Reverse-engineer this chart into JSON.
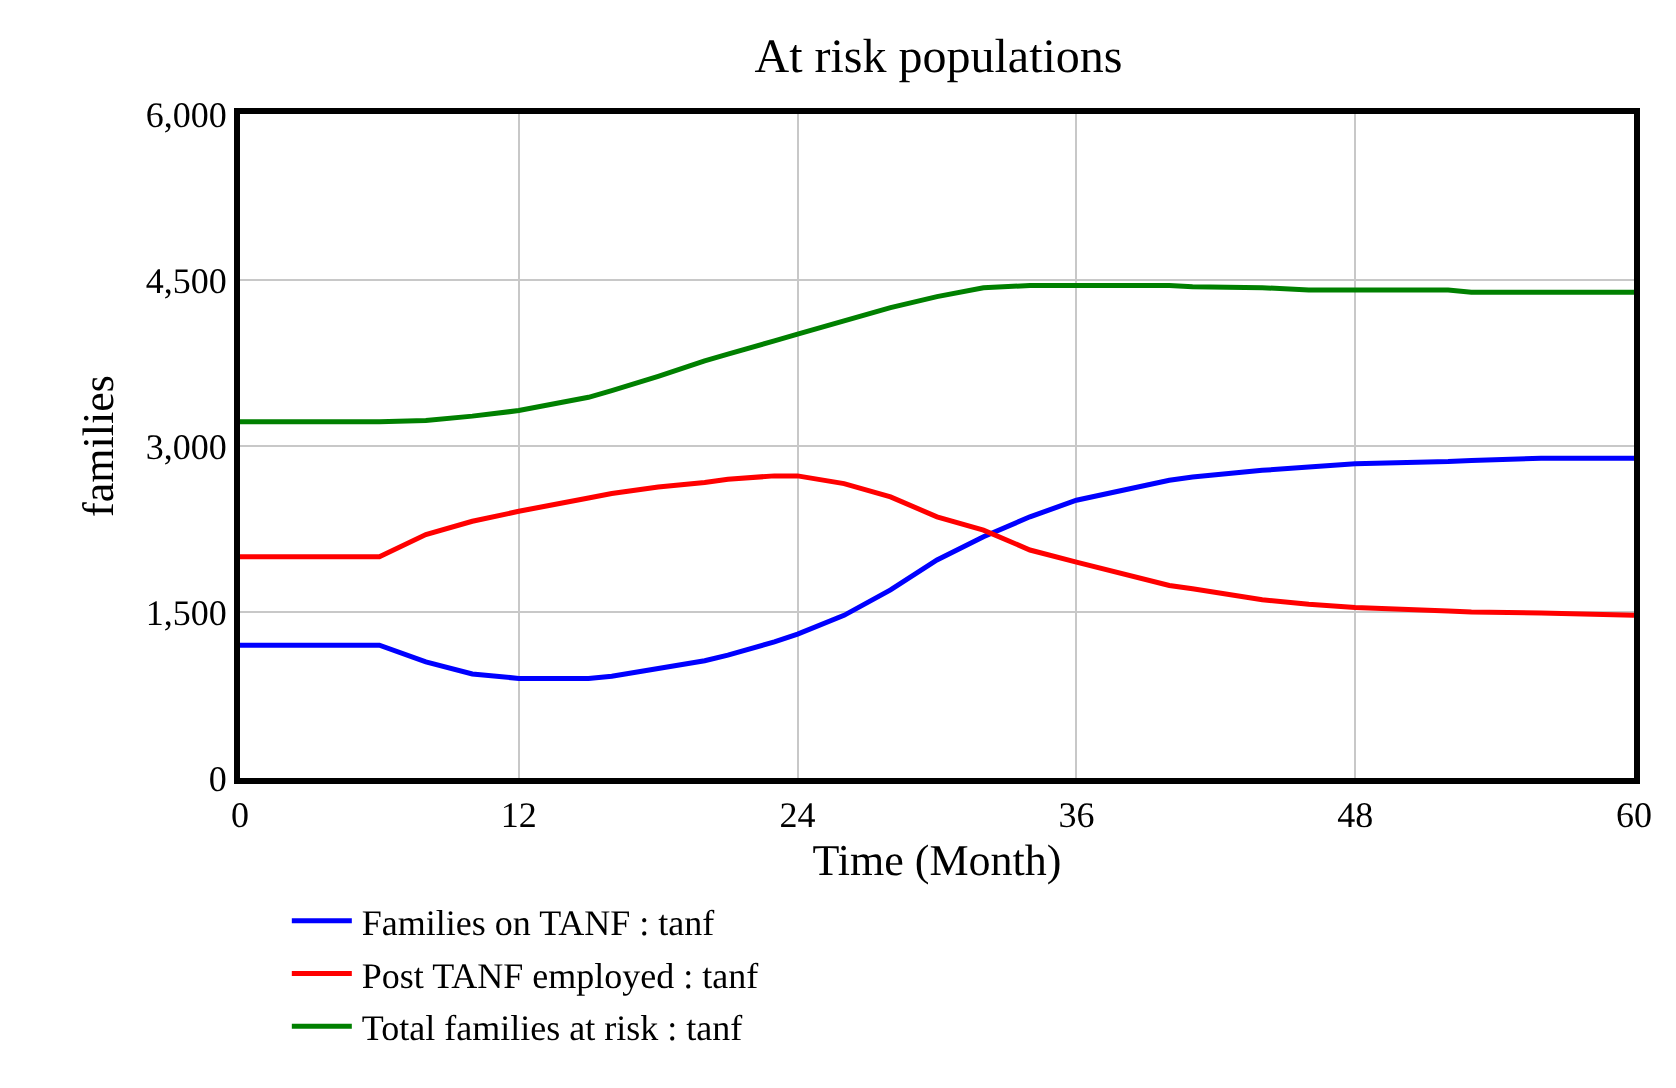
{
  "chart_data": {
    "type": "line",
    "title": "At risk populations",
    "xlabel": "Time (Month)",
    "ylabel": "families",
    "x": [
      0,
      6,
      8,
      10,
      12,
      15,
      16,
      18,
      20,
      21,
      23,
      24,
      26,
      28,
      30,
      32,
      34,
      36,
      40,
      41,
      44,
      46,
      48,
      52,
      53,
      56,
      60
    ],
    "series": [
      {
        "name": "Families on TANF : tanf",
        "color": "#0000ff",
        "values": [
          1200,
          1200,
          1050,
          940,
          900,
          900,
          920,
          990,
          1060,
          1110,
          1230,
          1300,
          1470,
          1700,
          1970,
          2180,
          2360,
          2510,
          2690,
          2720,
          2780,
          2810,
          2840,
          2860,
          2870,
          2890,
          2890
        ]
      },
      {
        "name": "Post TANF employed : tanf",
        "color": "#ff0000",
        "values": [
          2000,
          2000,
          2200,
          2320,
          2410,
          2530,
          2570,
          2630,
          2670,
          2700,
          2730,
          2730,
          2660,
          2540,
          2360,
          2240,
          2060,
          1950,
          1740,
          1710,
          1610,
          1570,
          1540,
          1510,
          1500,
          1490,
          1470
        ]
      },
      {
        "name": "Total families at risk : tanf",
        "color": "#008000",
        "values": [
          3220,
          3220,
          3230,
          3270,
          3320,
          3440,
          3500,
          3630,
          3770,
          3830,
          3950,
          4010,
          4130,
          4250,
          4350,
          4430,
          4450,
          4450,
          4450,
          4440,
          4430,
          4410,
          4410,
          4410,
          4390,
          4390,
          4390
        ]
      }
    ],
    "xlim": [
      0,
      60
    ],
    "xticks": [
      0,
      12,
      24,
      36,
      48,
      60
    ],
    "ylim": [
      0,
      6000
    ],
    "yticks": [
      {
        "value": 0,
        "label": "0"
      },
      {
        "value": 1500,
        "label": "1,500"
      },
      {
        "value": 3000,
        "label": "3,000"
      },
      {
        "value": 4500,
        "label": "4,500"
      },
      {
        "value": 6000,
        "label": "6,000"
      }
    ],
    "grid": true,
    "legend": "bottom",
    "marker": "none",
    "line_style": "solid"
  }
}
